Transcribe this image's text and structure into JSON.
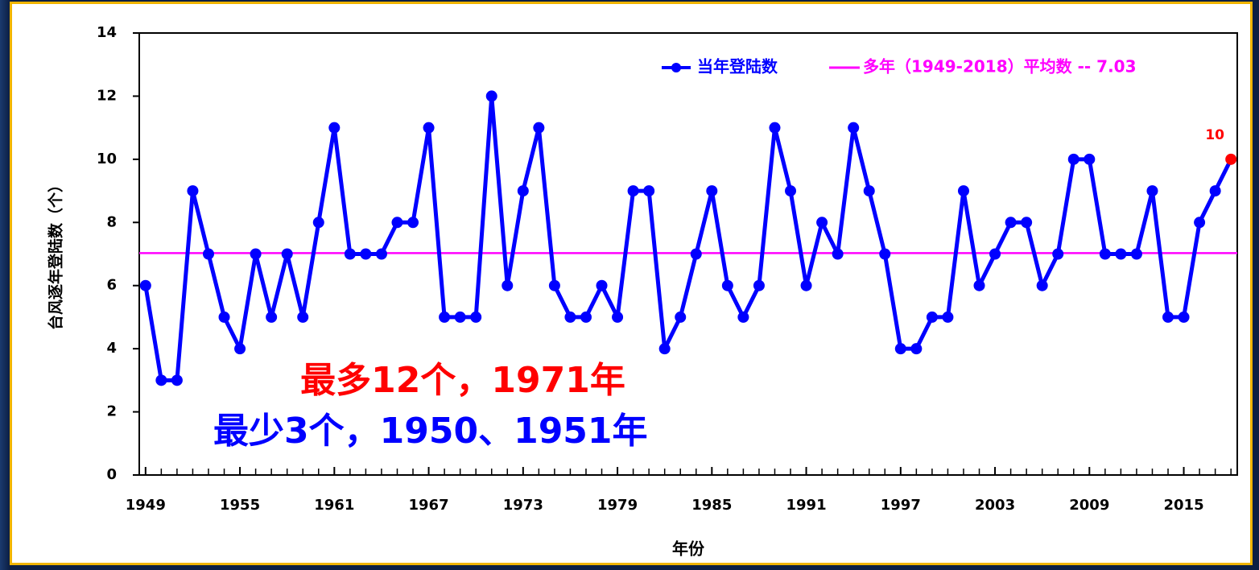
{
  "chart_data": {
    "type": "line",
    "y_label": "台风逐年登陆数（个）",
    "x_label": "年份",
    "x": [
      1949,
      1950,
      1951,
      1952,
      1953,
      1954,
      1955,
      1956,
      1957,
      1958,
      1959,
      1960,
      1961,
      1962,
      1963,
      1964,
      1965,
      1966,
      1967,
      1968,
      1969,
      1970,
      1971,
      1972,
      1973,
      1974,
      1975,
      1976,
      1977,
      1978,
      1979,
      1980,
      1981,
      1982,
      1983,
      1984,
      1985,
      1986,
      1987,
      1988,
      1989,
      1990,
      1991,
      1992,
      1993,
      1994,
      1995,
      1996,
      1997,
      1998,
      1999,
      2000,
      2001,
      2002,
      2003,
      2004,
      2005,
      2006,
      2007,
      2008,
      2009,
      2010,
      2011,
      2012,
      2013,
      2014,
      2015,
      2016,
      2017,
      2018
    ],
    "series": [
      {
        "name": "当年登陆数",
        "color": "#0000ff",
        "highlight_color": "#ff0000",
        "values": [
          6,
          3,
          3,
          9,
          7,
          5,
          4,
          7,
          5,
          7,
          5,
          8,
          11,
          7,
          7,
          7,
          8,
          8,
          11,
          5,
          5,
          5,
          12,
          6,
          9,
          11,
          6,
          5,
          5,
          6,
          5,
          9,
          9,
          4,
          5,
          7,
          9,
          6,
          5,
          6,
          11,
          9,
          6,
          8,
          7,
          11,
          9,
          7,
          4,
          4,
          5,
          5,
          9,
          6,
          7,
          8,
          8,
          6,
          7,
          10,
          10,
          7,
          7,
          7,
          9,
          5,
          5,
          8,
          9,
          10
        ]
      },
      {
        "name": "多年（1949-2018）平均数 -- 7.03",
        "color": "#ff00ff",
        "value": 7.03
      }
    ],
    "annotations": [
      {
        "text": "最多12个，1971年",
        "color": "#ff0000"
      },
      {
        "text": "最少3个，1950、1951年",
        "color": "#0000ff"
      }
    ],
    "xlim": [
      1948.6,
      2018.4
    ],
    "xticks": [
      1949,
      1955,
      1961,
      1967,
      1973,
      1979,
      1985,
      1991,
      1997,
      2003,
      2009,
      2015
    ],
    "ylim": [
      0,
      14
    ],
    "yticks": [
      0,
      2,
      4,
      6,
      8,
      10,
      12,
      14
    ],
    "grid": false,
    "legend": "upper right"
  }
}
